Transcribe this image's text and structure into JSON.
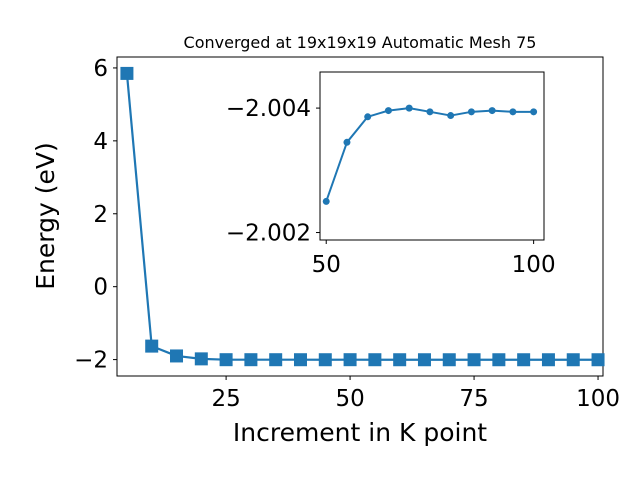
{
  "chart_data": [
    {
      "type": "line",
      "title": "Converged at 19x19x19 Automatic Mesh 75",
      "xlabel": "Increment in K point",
      "ylabel": "Energy (eV)",
      "xlim": [
        3,
        101
      ],
      "ylim": [
        -2.45,
        6.3
      ],
      "xticks": [
        25,
        50,
        75,
        100
      ],
      "xtick_labels": [
        "25",
        "50",
        "75",
        "100"
      ],
      "yticks": [
        -2,
        0,
        2,
        4,
        6
      ],
      "ytick_labels": [
        "−2",
        "0",
        "2",
        "4",
        "6"
      ],
      "grid": false,
      "marker": "square",
      "color": "#1f77b4",
      "series": [
        {
          "x": [
            5,
            10,
            15,
            20,
            25,
            30,
            35,
            40,
            45,
            50,
            55,
            60,
            65,
            70,
            75,
            80,
            85,
            90,
            95,
            100
          ],
          "y": [
            5.85,
            -1.63,
            -1.9,
            -1.98,
            -2.0025,
            -2.0027,
            -2.003,
            -2.0032,
            -2.0035,
            -2.0025,
            -2.0034,
            -2.0038,
            -2.00395,
            -2.004,
            -2.00395,
            -2.0039,
            -2.00395,
            -2.00397,
            -2.00396,
            -2.00396
          ]
        }
      ]
    },
    {
      "type": "line",
      "title": "",
      "xlabel": "",
      "ylabel": "",
      "xlim": [
        48.5,
        102.5
      ],
      "ylim": [
        -2.00188,
        -2.00458
      ],
      "xticks": [
        50,
        100
      ],
      "xtick_labels": [
        "50",
        "100"
      ],
      "yticks": [
        -2.004,
        -2.002
      ],
      "ytick_labels": [
        "−2.004",
        "−2.002"
      ],
      "grid": false,
      "marker": "circle",
      "color": "#1f77b4",
      "series": [
        {
          "x": [
            50,
            55,
            60,
            65,
            70,
            75,
            80,
            85,
            90,
            95,
            100
          ],
          "y": [
            -2.0025,
            -2.00345,
            -2.00386,
            -2.00396,
            -2.004,
            -2.00394,
            -2.00388,
            -2.00394,
            -2.00396,
            -2.00394,
            -2.00394
          ]
        }
      ]
    }
  ]
}
